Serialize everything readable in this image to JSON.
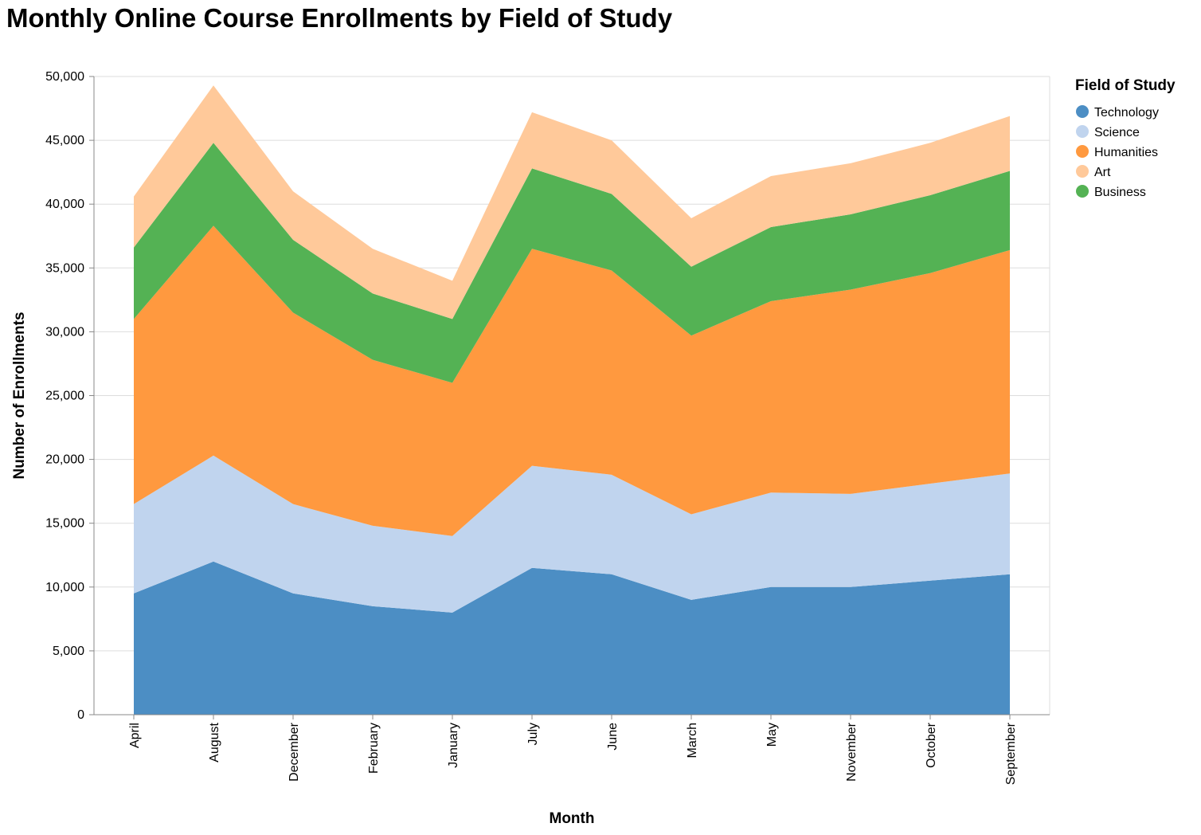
{
  "title": "Monthly Online Course Enrollments by Field of Study",
  "chart_data": {
    "type": "area",
    "stacked": true,
    "title": "Monthly Online Course Enrollments by Field of Study",
    "xlabel": "Month",
    "ylabel": "Number of Enrollments",
    "categories": [
      "April",
      "August",
      "December",
      "February",
      "January",
      "July",
      "June",
      "March",
      "May",
      "November",
      "October",
      "September"
    ],
    "ylim": [
      0,
      50000
    ],
    "yticks": [
      0,
      5000,
      10000,
      15000,
      20000,
      25000,
      30000,
      35000,
      40000,
      45000,
      50000
    ],
    "ytick_labels": [
      "0",
      "5,000",
      "10,000",
      "15,000",
      "20,000",
      "25,000",
      "30,000",
      "35,000",
      "40,000",
      "45,000",
      "50,000"
    ],
    "grid": true,
    "legend": {
      "title": "Field of Study",
      "placement": "right"
    },
    "series": [
      {
        "name": "Technology",
        "color": "#4c8ec4",
        "values": [
          9500,
          12000,
          9500,
          8500,
          8000,
          11500,
          11000,
          9000,
          10000,
          10000,
          10500,
          11000
        ]
      },
      {
        "name": "Science",
        "color": "#c0d4ee",
        "values": [
          7000,
          8300,
          7000,
          6300,
          6000,
          8000,
          7800,
          6700,
          7400,
          7300,
          7600,
          7900
        ]
      },
      {
        "name": "Humanities",
        "color": "#ff993f",
        "values": [
          14500,
          18000,
          15000,
          13000,
          12000,
          17000,
          16000,
          14000,
          15000,
          16000,
          16500,
          17500
        ]
      },
      {
        "name": "Art",
        "color": "#ffc99a",
        "values": [
          4000,
          4500,
          3800,
          3500,
          3000,
          4400,
          4200,
          3800,
          4000,
          4000,
          4100,
          4300
        ]
      },
      {
        "name": "Business",
        "color": "#54b254",
        "values": [
          5600,
          6500,
          5700,
          5200,
          5000,
          6300,
          6000,
          5400,
          5800,
          5900,
          6100,
          6200
        ]
      }
    ],
    "stack_order": [
      "Technology",
      "Science",
      "Humanities",
      "Business",
      "Art"
    ]
  }
}
